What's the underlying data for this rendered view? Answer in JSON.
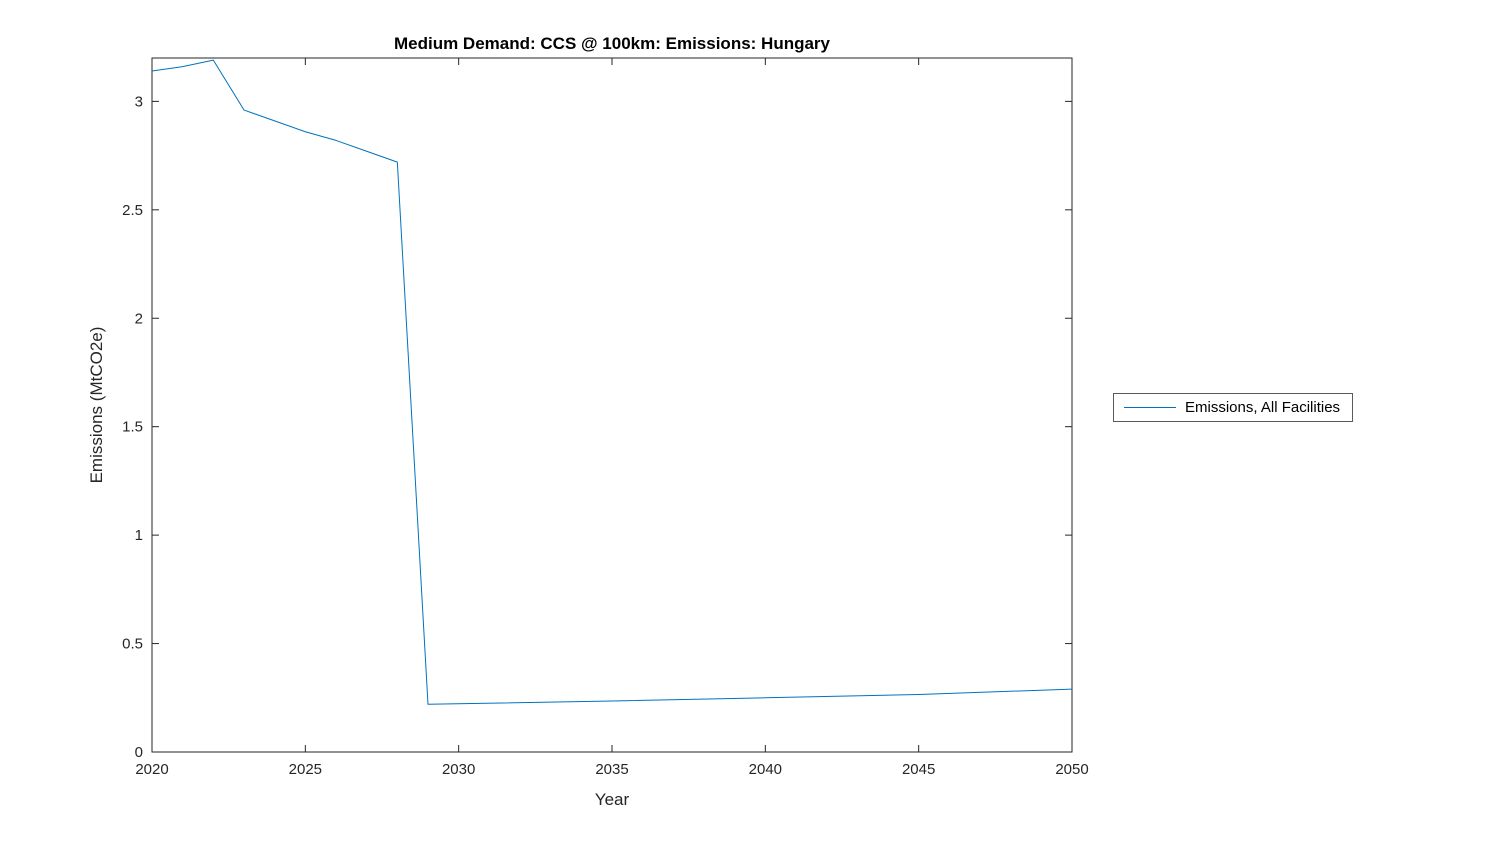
{
  "title": "Medium Demand: CCS @ 100km: Emissions: Hungary",
  "legend": {
    "items": [
      {
        "label": "Emissions, All Facilities",
        "color": "#0072BD"
      }
    ]
  },
  "chart_data": {
    "type": "line",
    "title": "Medium Demand: CCS @ 100km: Emissions: Hungary",
    "xlabel": "Year",
    "ylabel": "Emissions (MtCO2e)",
    "xlim": [
      2020,
      2050
    ],
    "ylim": [
      0,
      3.2
    ],
    "x_ticks": [
      2020,
      2025,
      2030,
      2035,
      2040,
      2045,
      2050
    ],
    "y_ticks": [
      0,
      0.5,
      1,
      1.5,
      2,
      2.5,
      3
    ],
    "grid": false,
    "legend_position": "right-outside",
    "axis_color": "#262626",
    "series": [
      {
        "name": "Emissions, All Facilities",
        "color": "#0072BD",
        "points": [
          [
            2020,
            3.14
          ],
          [
            2021,
            3.16
          ],
          [
            2022,
            3.19
          ],
          [
            2023,
            2.96
          ],
          [
            2024,
            2.91
          ],
          [
            2025,
            2.86
          ],
          [
            2026,
            2.82
          ],
          [
            2027,
            2.77
          ],
          [
            2028,
            2.72
          ],
          [
            2029,
            0.22
          ],
          [
            2035,
            0.235
          ],
          [
            2040,
            0.25
          ],
          [
            2045,
            0.265
          ],
          [
            2050,
            0.29
          ]
        ]
      }
    ]
  }
}
